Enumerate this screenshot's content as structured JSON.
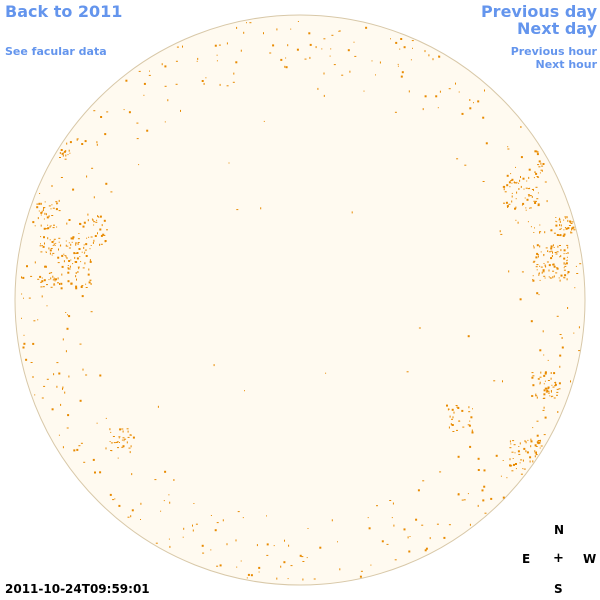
{
  "nav": {
    "back_label": "Back to 2011",
    "facular_label": "See facular data",
    "prev_day_label": "Previous day",
    "next_day_label": "Next day",
    "prev_hour_label": "Previous hour",
    "next_hour_label": "Next hour"
  },
  "timestamp": "2011-10-24T09:59:01",
  "compass": {
    "north": "N",
    "east": "E",
    "center": "+",
    "west": "W",
    "south": "S"
  },
  "colors": {
    "link": "#6495ed",
    "disk_fill": "#fffaf0",
    "disk_outline": "#d8c8a8",
    "facula": "#e88a00"
  }
}
